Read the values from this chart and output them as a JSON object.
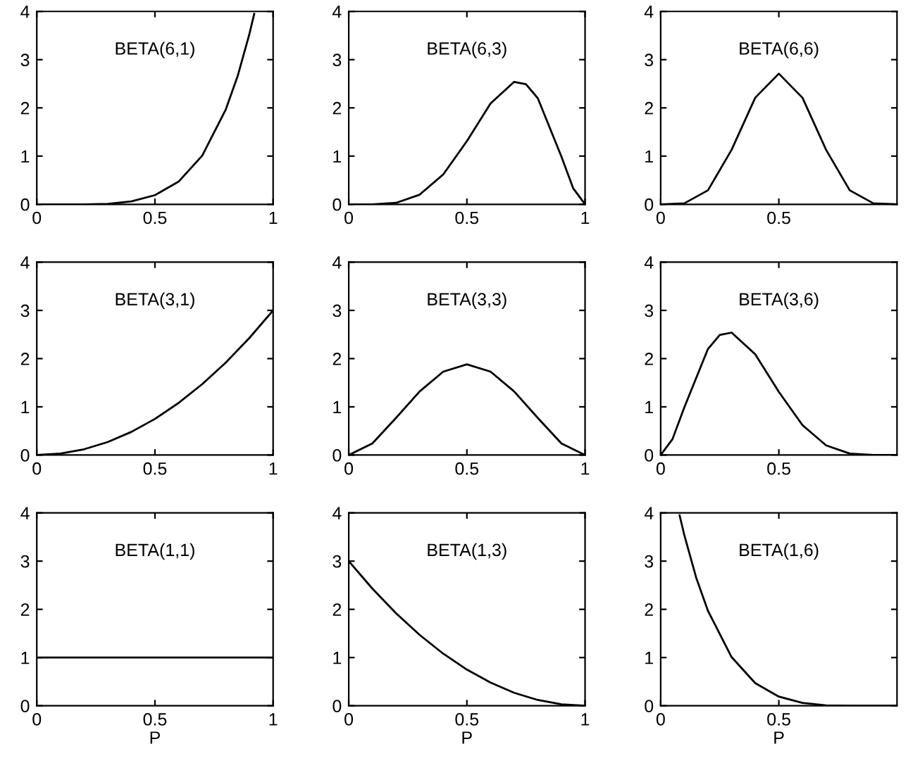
{
  "chart_data": [
    {
      "type": "line",
      "annotations": [
        "BETA(6,1)"
      ],
      "x": [
        0,
        0.2,
        0.3,
        0.4,
        0.5,
        0.6,
        0.7,
        0.8,
        0.85,
        0.9,
        0.92
      ],
      "series": [
        {
          "color": "#000000",
          "values": [
            0,
            0,
            0.01,
            0.06,
            0.19,
            0.47,
            1.01,
            1.97,
            2.66,
            3.54,
            3.95
          ]
        }
      ],
      "xlim": [
        0,
        1
      ],
      "ylim": [
        0,
        4
      ],
      "xticks": [
        0,
        0.5,
        1
      ],
      "yticks": [
        0,
        1,
        2,
        3,
        4
      ],
      "grid": false
    },
    {
      "type": "line",
      "annotations": [
        "BETA(6,3)"
      ],
      "x": [
        0,
        0.1,
        0.2,
        0.3,
        0.4,
        0.5,
        0.6,
        0.7,
        0.75,
        0.8,
        0.9,
        0.95,
        1
      ],
      "series": [
        {
          "color": "#000000",
          "values": [
            0,
            0,
            0.03,
            0.2,
            0.62,
            1.31,
            2.09,
            2.54,
            2.49,
            2.2,
            0.99,
            0.33,
            0
          ]
        }
      ],
      "xlim": [
        0,
        1
      ],
      "ylim": [
        0,
        4
      ],
      "xticks": [
        0,
        0.5,
        1
      ],
      "yticks": [
        0,
        1,
        2,
        3,
        4
      ],
      "grid": false
    },
    {
      "type": "line",
      "annotations": [
        "BETA(6,6)"
      ],
      "x": [
        0,
        0.1,
        0.2,
        0.3,
        0.4,
        0.5,
        0.6,
        0.7,
        0.8,
        0.9,
        1
      ],
      "series": [
        {
          "color": "#000000",
          "values": [
            0,
            0.02,
            0.29,
            1.13,
            2.21,
            2.71,
            2.21,
            1.13,
            0.29,
            0.02,
            0
          ]
        }
      ],
      "xlim": [
        0,
        1
      ],
      "ylim": [
        0,
        4
      ],
      "xticks": [
        0,
        0.5
      ],
      "yticks": [
        0,
        1,
        2,
        3,
        4
      ],
      "grid": false
    },
    {
      "type": "line",
      "annotations": [
        "BETA(3,1)"
      ],
      "x": [
        0,
        0.1,
        0.2,
        0.3,
        0.4,
        0.5,
        0.6,
        0.7,
        0.8,
        0.9,
        1
      ],
      "series": [
        {
          "color": "#000000",
          "values": [
            0,
            0.03,
            0.12,
            0.27,
            0.48,
            0.75,
            1.08,
            1.47,
            1.92,
            2.43,
            3
          ]
        }
      ],
      "xlim": [
        0,
        1
      ],
      "ylim": [
        0,
        4
      ],
      "xticks": [
        0,
        0.5,
        1
      ],
      "yticks": [
        0,
        1,
        2,
        3,
        4
      ],
      "grid": false
    },
    {
      "type": "line",
      "annotations": [
        "BETA(3,3)"
      ],
      "x": [
        0,
        0.1,
        0.2,
        0.3,
        0.4,
        0.5,
        0.6,
        0.7,
        0.8,
        0.9,
        1
      ],
      "series": [
        {
          "color": "#000000",
          "values": [
            0,
            0.24,
            0.77,
            1.32,
            1.73,
            1.88,
            1.73,
            1.32,
            0.77,
            0.24,
            0
          ]
        }
      ],
      "xlim": [
        0,
        1
      ],
      "ylim": [
        0,
        4
      ],
      "xticks": [
        0,
        0.5,
        1
      ],
      "yticks": [
        0,
        1,
        2,
        3,
        4
      ],
      "grid": false
    },
    {
      "type": "line",
      "annotations": [
        "BETA(3,6)"
      ],
      "x": [
        0,
        0.05,
        0.1,
        0.2,
        0.25,
        0.3,
        0.4,
        0.5,
        0.6,
        0.7,
        0.8,
        0.9,
        1
      ],
      "series": [
        {
          "color": "#000000",
          "values": [
            0,
            0.33,
            0.99,
            2.2,
            2.49,
            2.54,
            2.09,
            1.31,
            0.62,
            0.2,
            0.03,
            0,
            0
          ]
        }
      ],
      "xlim": [
        0,
        1
      ],
      "ylim": [
        0,
        4
      ],
      "xticks": [
        0,
        0.5
      ],
      "yticks": [
        0,
        1,
        2,
        3,
        4
      ],
      "grid": false
    },
    {
      "type": "line",
      "annotations": [
        "BETA(1,1)"
      ],
      "xlabel": "P",
      "x": [
        0,
        1
      ],
      "series": [
        {
          "color": "#000000",
          "values": [
            1,
            1
          ]
        }
      ],
      "xlim": [
        0,
        1
      ],
      "ylim": [
        0,
        4
      ],
      "xticks": [
        0,
        0.5,
        1
      ],
      "yticks": [
        0,
        1,
        2,
        3,
        4
      ],
      "grid": false
    },
    {
      "type": "line",
      "annotations": [
        "BETA(1,3)"
      ],
      "xlabel": "P",
      "x": [
        0,
        0.1,
        0.2,
        0.3,
        0.4,
        0.5,
        0.6,
        0.7,
        0.8,
        0.9,
        1
      ],
      "series": [
        {
          "color": "#000000",
          "values": [
            3,
            2.43,
            1.92,
            1.47,
            1.08,
            0.75,
            0.48,
            0.27,
            0.12,
            0.03,
            0
          ]
        }
      ],
      "xlim": [
        0,
        1
      ],
      "ylim": [
        0,
        4
      ],
      "xticks": [
        0,
        0.5,
        1
      ],
      "yticks": [
        0,
        1,
        2,
        3,
        4
      ],
      "grid": false
    },
    {
      "type": "line",
      "annotations": [
        "BETA(1,6)"
      ],
      "xlabel": "P",
      "x": [
        0.08,
        0.1,
        0.15,
        0.2,
        0.3,
        0.4,
        0.5,
        0.6,
        0.7,
        0.8,
        1
      ],
      "series": [
        {
          "color": "#000000",
          "values": [
            3.95,
            3.54,
            2.66,
            1.97,
            1.01,
            0.47,
            0.19,
            0.06,
            0.01,
            0,
            0
          ]
        }
      ],
      "xlim": [
        0,
        1
      ],
      "ylim": [
        0,
        4
      ],
      "xticks": [
        0,
        0.5
      ],
      "yticks": [
        0,
        1,
        2,
        3,
        4
      ],
      "grid": false
    }
  ]
}
